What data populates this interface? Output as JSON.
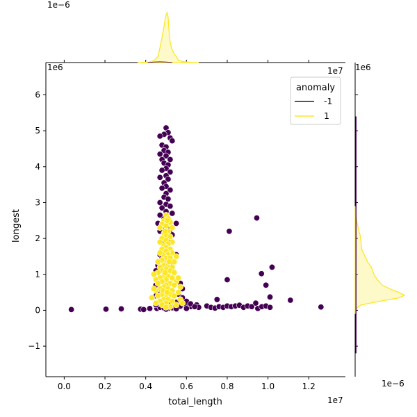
{
  "chart_data": {
    "type": "scatter",
    "xlabel": "total_length",
    "ylabel": "longest",
    "x_offset_label": "1e7",
    "y_offset_label": "1e6",
    "top_marginal_offset_label": "1e−6",
    "right_marginal_offset_label": "1e−6",
    "xlim": [
      -0.09,
      1.38
    ],
    "ylim": [
      -1.85,
      6.9
    ],
    "xticks": [
      0.0,
      0.2,
      0.4,
      0.6,
      0.8,
      1.0,
      1.2
    ],
    "xtick_labels": [
      "0.0",
      "0.2",
      "0.4",
      "0.6",
      "0.8",
      "1.0",
      "1.2"
    ],
    "yticks": [
      -1,
      0,
      1,
      2,
      3,
      4,
      5,
      6
    ],
    "ytick_labels": [
      "−1",
      "0",
      "1",
      "2",
      "3",
      "4",
      "5",
      "6"
    ],
    "legend": {
      "title": "anomaly",
      "placement": "top-right",
      "entries": [
        {
          "label": "-1",
          "color": "#440154"
        },
        {
          "label": "1",
          "color": "#fde725"
        }
      ]
    },
    "series": [
      {
        "name": "-1",
        "color": "#440154",
        "points": [
          [
            0.035,
            0.02
          ],
          [
            0.205,
            0.03
          ],
          [
            0.28,
            0.04
          ],
          [
            0.375,
            0.03
          ],
          [
            0.39,
            0.02
          ],
          [
            0.42,
            0.05
          ],
          [
            0.455,
            0.05
          ],
          [
            0.47,
            0.08
          ],
          [
            0.49,
            0.06
          ],
          [
            0.51,
            0.05
          ],
          [
            0.53,
            0.07
          ],
          [
            0.55,
            0.09
          ],
          [
            0.57,
            0.1
          ],
          [
            0.6,
            0.12
          ],
          [
            0.62,
            0.1
          ],
          [
            0.65,
            0.15
          ],
          [
            0.66,
            0.08
          ],
          [
            0.7,
            0.12
          ],
          [
            0.72,
            0.08
          ],
          [
            0.74,
            0.06
          ],
          [
            0.76,
            0.1
          ],
          [
            0.78,
            0.08
          ],
          [
            0.8,
            0.12
          ],
          [
            0.82,
            0.1
          ],
          [
            0.84,
            0.12
          ],
          [
            0.86,
            0.14
          ],
          [
            0.88,
            0.08
          ],
          [
            0.9,
            0.12
          ],
          [
            0.92,
            0.1
          ],
          [
            0.94,
            0.2
          ],
          [
            0.95,
            0.05
          ],
          [
            0.97,
            0.1
          ],
          [
            0.99,
            0.12
          ],
          [
            1.01,
            0.08
          ],
          [
            0.75,
            0.3
          ],
          [
            0.8,
            0.85
          ],
          [
            0.81,
            2.2
          ],
          [
            0.945,
            2.57
          ],
          [
            0.968,
            1.02
          ],
          [
            0.99,
            0.7
          ],
          [
            1.01,
            0.37
          ],
          [
            1.02,
            1.2
          ],
          [
            1.11,
            0.28
          ],
          [
            1.26,
            0.09
          ],
          [
            0.5,
            5.08
          ],
          [
            0.51,
            4.95
          ],
          [
            0.49,
            4.9
          ],
          [
            0.52,
            4.8
          ],
          [
            0.47,
            4.85
          ],
          [
            0.53,
            4.72
          ],
          [
            0.48,
            4.6
          ],
          [
            0.5,
            4.55
          ],
          [
            0.49,
            4.45
          ],
          [
            0.51,
            4.4
          ],
          [
            0.47,
            4.35
          ],
          [
            0.5,
            4.3
          ],
          [
            0.48,
            4.2
          ],
          [
            0.52,
            4.2
          ],
          [
            0.49,
            4.1
          ],
          [
            0.51,
            4.05
          ],
          [
            0.5,
            3.95
          ],
          [
            0.48,
            3.9
          ],
          [
            0.52,
            3.85
          ],
          [
            0.5,
            3.75
          ],
          [
            0.47,
            3.7
          ],
          [
            0.51,
            3.65
          ],
          [
            0.49,
            3.55
          ],
          [
            0.5,
            3.45
          ],
          [
            0.48,
            3.4
          ],
          [
            0.52,
            3.35
          ],
          [
            0.5,
            3.25
          ],
          [
            0.49,
            3.15
          ],
          [
            0.51,
            3.1
          ],
          [
            0.47,
            3.0
          ],
          [
            0.5,
            2.95
          ],
          [
            0.52,
            2.9
          ],
          [
            0.48,
            2.85
          ],
          [
            0.5,
            2.75
          ],
          [
            0.53,
            2.7
          ],
          [
            0.47,
            2.65
          ],
          [
            0.5,
            2.6
          ],
          [
            0.49,
            2.55
          ],
          [
            0.51,
            2.5
          ],
          [
            0.46,
            2.42
          ],
          [
            0.55,
            2.42
          ],
          [
            0.48,
            2.35
          ],
          [
            0.5,
            2.3
          ],
          [
            0.52,
            2.25
          ],
          [
            0.47,
            2.2
          ],
          [
            0.53,
            2.1
          ],
          [
            0.5,
            2.05
          ],
          [
            0.48,
            1.95
          ],
          [
            0.51,
            1.9
          ],
          [
            0.49,
            1.8
          ],
          [
            0.52,
            1.7
          ],
          [
            0.5,
            1.6
          ],
          [
            0.47,
            1.55
          ],
          [
            0.55,
            1.55
          ],
          [
            0.48,
            1.45
          ],
          [
            0.53,
            1.35
          ],
          [
            0.46,
            1.25
          ],
          [
            0.5,
            1.2
          ],
          [
            0.45,
            1.1
          ],
          [
            0.54,
            1.05
          ],
          [
            0.49,
            0.95
          ],
          [
            0.46,
            0.85
          ],
          [
            0.57,
            0.75
          ],
          [
            0.45,
            0.7
          ],
          [
            0.58,
            0.6
          ],
          [
            0.47,
            0.55
          ],
          [
            0.56,
            0.45
          ],
          [
            0.45,
            0.4
          ],
          [
            0.58,
            0.35
          ],
          [
            0.5,
            0.3
          ],
          [
            0.47,
            0.25
          ],
          [
            0.55,
            0.22
          ],
          [
            0.6,
            0.25
          ],
          [
            0.46,
            0.18
          ],
          [
            0.52,
            0.15
          ],
          [
            0.57,
            0.12
          ],
          [
            0.62,
            0.18
          ],
          [
            0.64,
            0.1
          ],
          [
            0.6,
            0.05
          ],
          [
            0.55,
            0.04
          ],
          [
            0.5,
            0.03
          ],
          [
            0.45,
            0.15
          ]
        ]
      },
      {
        "name": "1",
        "color": "#fde725",
        "points": [
          [
            0.5,
            2.65
          ],
          [
            0.51,
            2.55
          ],
          [
            0.49,
            2.5
          ],
          [
            0.52,
            2.45
          ],
          [
            0.48,
            2.4
          ],
          [
            0.5,
            2.35
          ],
          [
            0.53,
            2.3
          ],
          [
            0.47,
            2.3
          ],
          [
            0.51,
            2.2
          ],
          [
            0.49,
            2.15
          ],
          [
            0.5,
            2.1
          ],
          [
            0.52,
            2.05
          ],
          [
            0.48,
            2.0
          ],
          [
            0.5,
            1.95
          ],
          [
            0.53,
            1.9
          ],
          [
            0.47,
            1.9
          ],
          [
            0.51,
            1.85
          ],
          [
            0.49,
            1.8
          ],
          [
            0.5,
            1.75
          ],
          [
            0.52,
            1.7
          ],
          [
            0.48,
            1.7
          ],
          [
            0.5,
            1.65
          ],
          [
            0.47,
            1.6
          ],
          [
            0.53,
            1.6
          ],
          [
            0.51,
            1.55
          ],
          [
            0.49,
            1.5
          ],
          [
            0.5,
            1.45
          ],
          [
            0.52,
            1.45
          ],
          [
            0.48,
            1.4
          ],
          [
            0.46,
            1.35
          ],
          [
            0.54,
            1.35
          ],
          [
            0.5,
            1.3
          ],
          [
            0.49,
            1.25
          ],
          [
            0.51,
            1.25
          ],
          [
            0.47,
            1.2
          ],
          [
            0.53,
            1.2
          ],
          [
            0.5,
            1.15
          ],
          [
            0.48,
            1.1
          ],
          [
            0.52,
            1.1
          ],
          [
            0.46,
            1.05
          ],
          [
            0.54,
            1.05
          ],
          [
            0.5,
            1.0
          ],
          [
            0.49,
            0.95
          ],
          [
            0.51,
            0.95
          ],
          [
            0.47,
            0.9
          ],
          [
            0.53,
            0.9
          ],
          [
            0.5,
            0.85
          ],
          [
            0.45,
            0.85
          ],
          [
            0.55,
            0.8
          ],
          [
            0.48,
            0.8
          ],
          [
            0.52,
            0.75
          ],
          [
            0.46,
            0.75
          ],
          [
            0.54,
            0.7
          ],
          [
            0.5,
            0.7
          ],
          [
            0.49,
            0.65
          ],
          [
            0.51,
            0.6
          ],
          [
            0.47,
            0.6
          ],
          [
            0.53,
            0.55
          ],
          [
            0.45,
            0.55
          ],
          [
            0.56,
            0.5
          ],
          [
            0.5,
            0.5
          ],
          [
            0.48,
            0.45
          ],
          [
            0.52,
            0.45
          ],
          [
            0.46,
            0.4
          ],
          [
            0.54,
            0.4
          ],
          [
            0.5,
            0.35
          ],
          [
            0.49,
            0.3
          ],
          [
            0.51,
            0.3
          ],
          [
            0.47,
            0.25
          ],
          [
            0.53,
            0.25
          ],
          [
            0.5,
            0.2
          ],
          [
            0.45,
            0.2
          ],
          [
            0.55,
            0.15
          ],
          [
            0.48,
            0.15
          ],
          [
            0.52,
            0.1
          ],
          [
            0.5,
            0.08
          ],
          [
            0.57,
            0.3
          ],
          [
            0.58,
            0.2
          ],
          [
            0.57,
            0.65
          ],
          [
            0.56,
            0.9
          ],
          [
            0.44,
            1.0
          ],
          [
            0.44,
            0.6
          ],
          [
            0.43,
            0.35
          ],
          [
            0.55,
            1.5
          ],
          [
            0.505,
            2.5
          ],
          [
            0.495,
            2.2
          ],
          [
            0.515,
            1.35
          ],
          [
            0.485,
            0.55
          ],
          [
            0.505,
            0.5
          ],
          [
            0.495,
            1.05
          ]
        ]
      }
    ],
    "marginal_x": {
      "colors": [
        "#fde725"
      ],
      "density_curve": [
        [
          0.36,
          0.0
        ],
        [
          0.42,
          0.01
        ],
        [
          0.44,
          0.04
        ],
        [
          0.46,
          0.12
        ],
        [
          0.47,
          0.3
        ],
        [
          0.48,
          0.5
        ],
        [
          0.49,
          0.72
        ],
        [
          0.495,
          0.85
        ],
        [
          0.5,
          0.95
        ],
        [
          0.505,
          1.0
        ],
        [
          0.51,
          0.9
        ],
        [
          0.515,
          0.6
        ],
        [
          0.52,
          0.4
        ],
        [
          0.53,
          0.25
        ],
        [
          0.54,
          0.17
        ],
        [
          0.55,
          0.12
        ],
        [
          0.56,
          0.05
        ],
        [
          0.58,
          0.02
        ],
        [
          0.62,
          0.005
        ],
        [
          0.66,
          0.0
        ]
      ]
    },
    "marginal_y": {
      "colors": [
        "#fde725",
        "#440154"
      ],
      "density_curve": [
        [
          -0.1,
          0.0
        ],
        [
          0.05,
          0.02
        ],
        [
          0.15,
          0.12
        ],
        [
          0.25,
          0.5
        ],
        [
          0.35,
          0.9
        ],
        [
          0.42,
          1.0
        ],
        [
          0.5,
          0.88
        ],
        [
          0.6,
          0.7
        ],
        [
          0.7,
          0.55
        ],
        [
          0.85,
          0.45
        ],
        [
          1.0,
          0.38
        ],
        [
          1.2,
          0.33
        ],
        [
          1.35,
          0.25
        ],
        [
          1.5,
          0.2
        ],
        [
          1.7,
          0.13
        ],
        [
          1.9,
          0.12
        ],
        [
          2.1,
          0.1
        ],
        [
          2.3,
          0.06
        ],
        [
          2.5,
          0.03
        ],
        [
          2.7,
          0.01
        ],
        [
          2.9,
          0.0
        ]
      ]
    }
  }
}
